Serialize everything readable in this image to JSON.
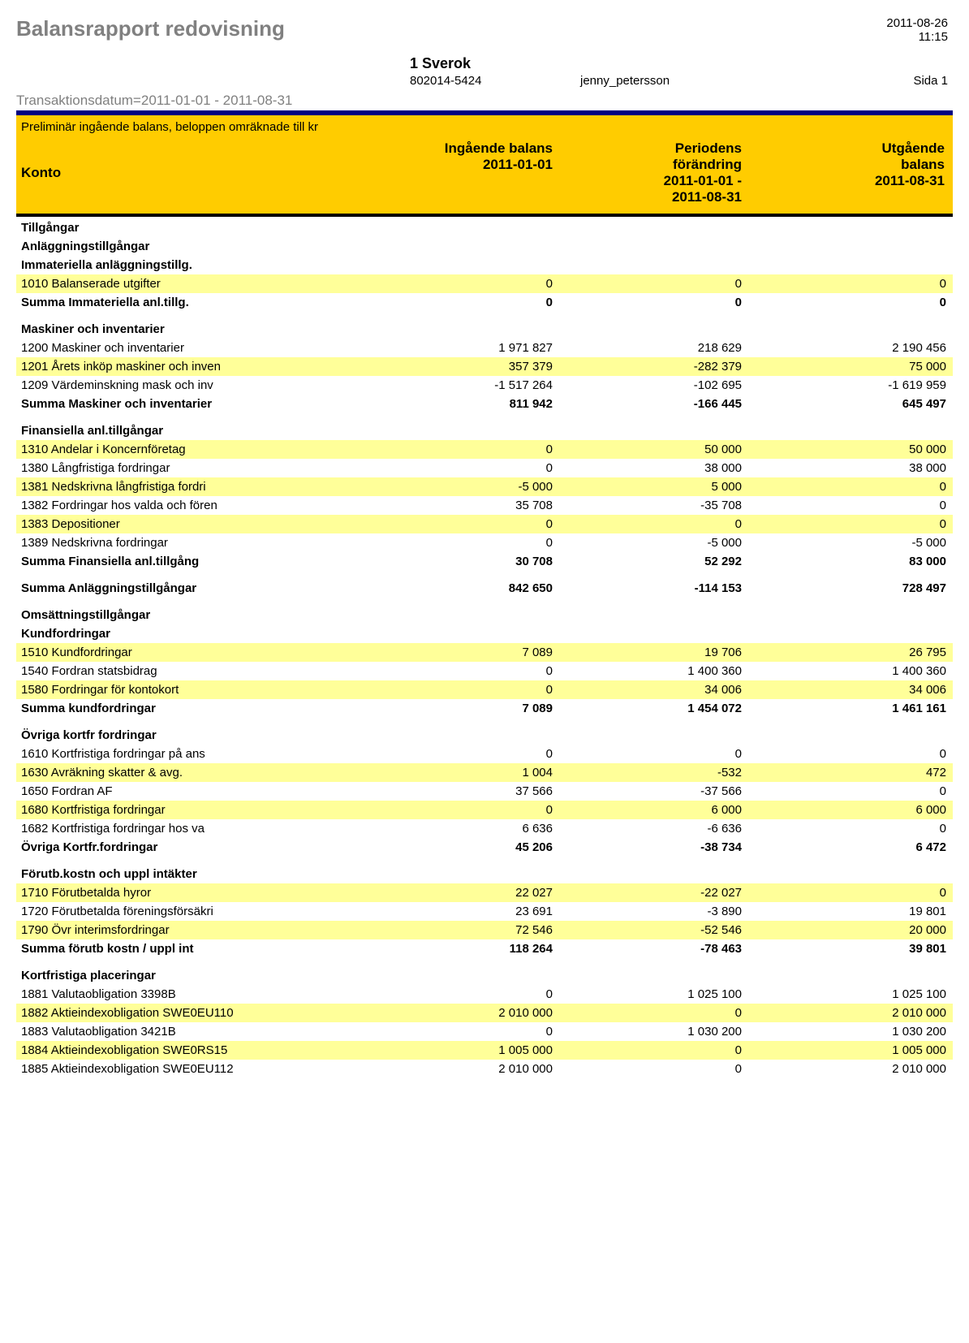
{
  "header": {
    "title": "Balansrapport redovisning",
    "date": "2011-08-26",
    "time": "11:15",
    "company_name": "1 Sverok",
    "company_orgnr": "802014-5424",
    "user": "jenny_petersson",
    "page": "Sida 1",
    "trans_date": "Transaktionsdatum=2011-01-01 - 2011-08-31"
  },
  "table_header": {
    "prelim": "Preliminär ingående balans, beloppen omräknade till kr",
    "konto": "Konto",
    "ingaende_l1": "Ingående balans",
    "ingaende_l2": "2011-01-01",
    "period_l1": "Periodens",
    "period_l2": "förändring",
    "period_l3": "2011-01-01 -",
    "period_l4": "2011-08-31",
    "utg_l1": "Utgående",
    "utg_l2": "balans",
    "utg_l3": "2011-08-31"
  },
  "colors": {
    "header_bg": "#ffcc00",
    "highlight_bg": "#ffff99",
    "border_top": "#000080",
    "title_gray": "#808080"
  },
  "rows": [
    {
      "type": "heading",
      "label": "Tillgångar"
    },
    {
      "type": "heading",
      "label": "Anläggningstillgångar"
    },
    {
      "type": "heading",
      "label": "Immateriella anläggningstillg."
    },
    {
      "type": "data",
      "hl": true,
      "label": "1010 Balanserade utgifter",
      "c2": "0",
      "c3": "0",
      "c4": "0"
    },
    {
      "type": "sum",
      "label": "Summa Immateriella anl.tillg.",
      "c2": "0",
      "c3": "0",
      "c4": "0"
    },
    {
      "type": "gap"
    },
    {
      "type": "heading",
      "label": "Maskiner och inventarier"
    },
    {
      "type": "data",
      "label": "1200 Maskiner och inventarier",
      "c2": "1 971 827",
      "c3": "218 629",
      "c4": "2 190 456"
    },
    {
      "type": "data",
      "hl": true,
      "label": "1201 Årets inköp maskiner och inven",
      "c2": "357 379",
      "c3": "-282 379",
      "c4": "75 000"
    },
    {
      "type": "data",
      "label": "1209 Värdeminskning mask och inv",
      "c2": "-1 517 264",
      "c3": "-102 695",
      "c4": "-1 619 959"
    },
    {
      "type": "sum",
      "label": "Summa Maskiner och inventarier",
      "c2": "811 942",
      "c3": "-166 445",
      "c4": "645 497"
    },
    {
      "type": "gap"
    },
    {
      "type": "heading",
      "label": "Finansiella anl.tillgångar"
    },
    {
      "type": "data",
      "hl": true,
      "label": "1310 Andelar i Koncernföretag",
      "c2": "0",
      "c3": "50 000",
      "c4": "50 000"
    },
    {
      "type": "data",
      "label": "1380 Långfristiga fordringar",
      "c2": "0",
      "c3": "38 000",
      "c4": "38 000"
    },
    {
      "type": "data",
      "hl": true,
      "label": "1381 Nedskrivna långfristiga fordri",
      "c2": "-5 000",
      "c3": "5 000",
      "c4": "0"
    },
    {
      "type": "data",
      "label": "1382 Fordringar hos valda och fören",
      "c2": "35 708",
      "c3": "-35 708",
      "c4": "0"
    },
    {
      "type": "data",
      "hl": true,
      "label": "1383 Depositioner",
      "c2": "0",
      "c3": "0",
      "c4": "0"
    },
    {
      "type": "data",
      "label": "1389 Nedskrivna fordringar",
      "c2": "0",
      "c3": "-5 000",
      "c4": "-5 000"
    },
    {
      "type": "sum",
      "label": "Summa Finansiella anl.tillgång",
      "c2": "30 708",
      "c3": "52 292",
      "c4": "83 000"
    },
    {
      "type": "gap"
    },
    {
      "type": "sum",
      "label": "Summa Anläggningstillgångar",
      "c2": "842 650",
      "c3": "-114 153",
      "c4": "728 497"
    },
    {
      "type": "gap"
    },
    {
      "type": "heading",
      "label": "Omsättningstillgångar"
    },
    {
      "type": "heading",
      "label": "Kundfordringar"
    },
    {
      "type": "data",
      "hl": true,
      "label": "1510 Kundfordringar",
      "c2": "7 089",
      "c3": "19 706",
      "c4": "26 795"
    },
    {
      "type": "data",
      "label": "1540 Fordran statsbidrag",
      "c2": "0",
      "c3": "1 400 360",
      "c4": "1 400 360"
    },
    {
      "type": "data",
      "hl": true,
      "label": "1580 Fordringar för kontokort",
      "c2": "0",
      "c3": "34 006",
      "c4": "34 006"
    },
    {
      "type": "sum",
      "label": "Summa kundfordringar",
      "c2": "7 089",
      "c3": "1 454 072",
      "c4": "1 461 161"
    },
    {
      "type": "gap"
    },
    {
      "type": "heading",
      "label": "Övriga kortfr fordringar"
    },
    {
      "type": "data",
      "label": "1610 Kortfristiga fordringar på ans",
      "c2": "0",
      "c3": "0",
      "c4": "0"
    },
    {
      "type": "data",
      "hl": true,
      "label": "1630 Avräkning skatter & avg.",
      "c2": "1 004",
      "c3": "-532",
      "c4": "472"
    },
    {
      "type": "data",
      "label": "1650 Fordran AF",
      "c2": "37 566",
      "c3": "-37 566",
      "c4": "0"
    },
    {
      "type": "data",
      "hl": true,
      "label": "1680 Kortfristiga fordringar",
      "c2": "0",
      "c3": "6 000",
      "c4": "6 000"
    },
    {
      "type": "data",
      "label": "1682 Kortfristiga fordringar hos va",
      "c2": "6 636",
      "c3": "-6 636",
      "c4": "0"
    },
    {
      "type": "sum",
      "label": "Övriga Kortfr.fordringar",
      "c2": "45 206",
      "c3": "-38 734",
      "c4": "6 472"
    },
    {
      "type": "gap"
    },
    {
      "type": "heading",
      "label": "Förutb.kostn och uppl intäkter"
    },
    {
      "type": "data",
      "hl": true,
      "label": "1710 Förutbetalda hyror",
      "c2": "22 027",
      "c3": "-22 027",
      "c4": "0"
    },
    {
      "type": "data",
      "label": "1720 Förutbetalda föreningsförsäkri",
      "c2": "23 691",
      "c3": "-3 890",
      "c4": "19 801"
    },
    {
      "type": "data",
      "hl": true,
      "label": "1790 Övr interimsfordringar",
      "c2": "72 546",
      "c3": "-52 546",
      "c4": "20 000"
    },
    {
      "type": "sum",
      "label": "Summa  förutb kostn / uppl int",
      "c2": "118 264",
      "c3": "-78 463",
      "c4": "39 801"
    },
    {
      "type": "gap"
    },
    {
      "type": "heading",
      "label": "Kortfristiga placeringar"
    },
    {
      "type": "data",
      "label": "1881 Valutaobligation 3398B",
      "c2": "0",
      "c3": "1 025 100",
      "c4": "1 025 100"
    },
    {
      "type": "data",
      "hl": true,
      "label": "1882 Aktieindexobligation SWE0EU110",
      "c2": "2 010 000",
      "c3": "0",
      "c4": "2 010 000"
    },
    {
      "type": "data",
      "label": "1883 Valutaobligation 3421B",
      "c2": "0",
      "c3": "1 030 200",
      "c4": "1 030 200"
    },
    {
      "type": "data",
      "hl": true,
      "label": "1884 Aktieindexobligation SWE0RS15",
      "c2": "1 005 000",
      "c3": "0",
      "c4": "1 005 000"
    },
    {
      "type": "data",
      "label": "1885 Aktieindexobligation SWE0EU112",
      "c2": "2 010 000",
      "c3": "0",
      "c4": "2 010 000"
    }
  ]
}
